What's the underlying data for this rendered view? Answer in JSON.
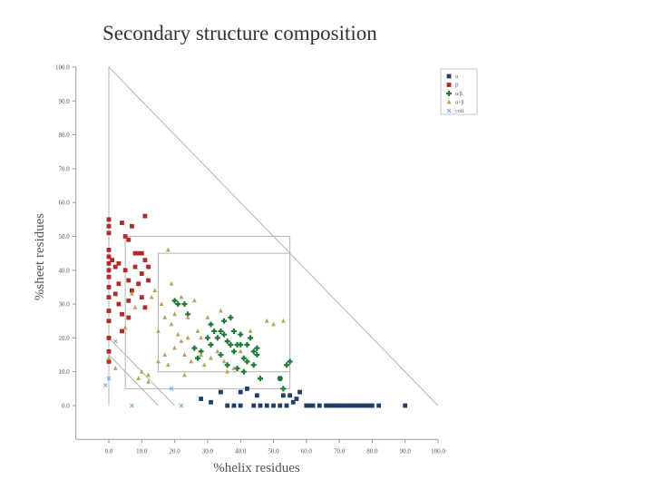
{
  "colors": {
    "alpha": "#1f3f6b",
    "beta": "#b22a2a",
    "a_b": "#1f7a3a",
    "a_plus_b": "#b8a45a",
    "coil": "#7fb0d8",
    "axis": "#9a9a9a",
    "guide": "#b4b4b4"
  },
  "chart_data": {
    "type": "scatter",
    "title": "Secondary structure composition",
    "xlabel": "%helix residues",
    "ylabel": "%sheet residues",
    "xlim": [
      -10,
      100
    ],
    "ylim": [
      -10,
      100
    ],
    "x_ticks": [
      "0.0",
      "10.0",
      "20.0",
      "30.0",
      "40.0",
      "50.0",
      "60.0",
      "70.0",
      "80.0",
      "90.0",
      "100.0"
    ],
    "y_ticks": [
      "0.0",
      "10.0",
      "20.0",
      "30.0",
      "40.0",
      "50.0",
      "60.0",
      "70.0",
      "80.0",
      "90.0",
      "100.0"
    ],
    "legend": {
      "position": "top-right",
      "entries": [
        "α",
        "β",
        "α/β",
        "α+β",
        "coil"
      ]
    },
    "guides": [
      {
        "name": "diagonal-boundary",
        "points": [
          [
            0,
            100
          ],
          [
            100,
            0
          ]
        ]
      },
      {
        "name": "boundary-line-a",
        "points": [
          [
            0,
            20
          ],
          [
            20,
            0
          ]
        ]
      },
      {
        "name": "boundary-line-b",
        "points": [
          [
            0,
            15
          ],
          [
            15,
            0
          ]
        ]
      },
      {
        "name": "region-box-outer",
        "points": [
          [
            5,
            50
          ],
          [
            55,
            50
          ],
          [
            55,
            5
          ],
          [
            5,
            5
          ]
        ]
      },
      {
        "name": "region-box-inner",
        "points": [
          [
            15,
            45
          ],
          [
            55,
            45
          ],
          [
            55,
            10
          ],
          [
            15,
            10
          ]
        ]
      }
    ],
    "series": [
      {
        "name": "α",
        "marker": "square",
        "points": [
          [
            28,
            2
          ],
          [
            31,
            1
          ],
          [
            34,
            4
          ],
          [
            36,
            0
          ],
          [
            38,
            0
          ],
          [
            40,
            0
          ],
          [
            40,
            4
          ],
          [
            42,
            5
          ],
          [
            44,
            0
          ],
          [
            45,
            3
          ],
          [
            48,
            0
          ],
          [
            52,
            0
          ],
          [
            52,
            8
          ],
          [
            53,
            3
          ],
          [
            54,
            0
          ],
          [
            55,
            3
          ],
          [
            57,
            2
          ],
          [
            58,
            4
          ],
          [
            60,
            0
          ],
          [
            61,
            0
          ],
          [
            62,
            0
          ],
          [
            64,
            0
          ],
          [
            66,
            0
          ],
          [
            67,
            0
          ],
          [
            68,
            0
          ],
          [
            69,
            0
          ],
          [
            70,
            0
          ],
          [
            71,
            0
          ],
          [
            72,
            0
          ],
          [
            73,
            0
          ],
          [
            74,
            0
          ],
          [
            75,
            0
          ],
          [
            76,
            0
          ],
          [
            77,
            0
          ],
          [
            78,
            0
          ],
          [
            79,
            0
          ],
          [
            80,
            0
          ],
          [
            82,
            0
          ],
          [
            90,
            0
          ],
          [
            56,
            1
          ],
          [
            50,
            0
          ],
          [
            46,
            0
          ]
        ]
      },
      {
        "name": "β",
        "marker": "square",
        "points": [
          [
            0,
            55
          ],
          [
            0,
            53
          ],
          [
            0,
            51
          ],
          [
            0,
            46
          ],
          [
            0,
            44
          ],
          [
            0,
            42
          ],
          [
            0,
            40
          ],
          [
            0,
            38
          ],
          [
            0,
            35
          ],
          [
            0,
            32
          ],
          [
            0,
            28
          ],
          [
            0,
            25
          ],
          [
            0,
            20
          ],
          [
            0,
            16
          ],
          [
            0,
            13
          ],
          [
            1,
            43
          ],
          [
            2,
            41
          ],
          [
            2,
            33
          ],
          [
            3,
            42
          ],
          [
            3,
            36
          ],
          [
            3,
            30
          ],
          [
            4,
            27
          ],
          [
            4,
            22
          ],
          [
            4,
            54
          ],
          [
            5,
            50
          ],
          [
            5,
            40
          ],
          [
            6,
            49
          ],
          [
            6,
            37
          ],
          [
            6,
            31
          ],
          [
            6,
            26
          ],
          [
            7,
            53
          ],
          [
            7,
            34
          ],
          [
            8,
            45
          ],
          [
            8,
            41
          ],
          [
            9,
            45
          ],
          [
            9,
            36
          ],
          [
            10,
            45
          ],
          [
            10,
            39
          ],
          [
            10,
            32
          ],
          [
            11,
            43
          ],
          [
            11,
            29
          ],
          [
            12,
            41
          ],
          [
            12,
            37
          ],
          [
            11,
            56
          ]
        ]
      },
      {
        "name": "α/β",
        "marker": "plus",
        "points": [
          [
            20,
            31
          ],
          [
            21,
            30
          ],
          [
            23,
            30
          ],
          [
            24,
            27
          ],
          [
            26,
            17
          ],
          [
            28,
            16
          ],
          [
            30,
            20
          ],
          [
            31,
            24
          ],
          [
            31,
            18
          ],
          [
            32,
            22
          ],
          [
            33,
            20
          ],
          [
            34,
            22
          ],
          [
            34,
            15
          ],
          [
            35,
            25
          ],
          [
            35,
            21
          ],
          [
            36,
            19
          ],
          [
            36,
            12
          ],
          [
            37,
            18
          ],
          [
            38,
            22
          ],
          [
            38,
            16
          ],
          [
            39,
            18
          ],
          [
            40,
            18
          ],
          [
            40,
            21
          ],
          [
            41,
            14
          ],
          [
            41,
            10
          ],
          [
            42,
            18
          ],
          [
            43,
            20
          ],
          [
            44,
            16
          ],
          [
            44,
            12
          ],
          [
            45,
            15
          ],
          [
            45,
            17
          ],
          [
            46,
            8
          ],
          [
            52,
            8
          ],
          [
            54,
            12
          ],
          [
            55,
            13
          ],
          [
            53,
            5
          ],
          [
            37,
            26
          ],
          [
            39,
            11
          ],
          [
            42,
            13
          ],
          [
            27,
            14
          ]
        ]
      },
      {
        "name": "α+β",
        "marker": "triangle",
        "points": [
          [
            0,
            14
          ],
          [
            2,
            11
          ],
          [
            5,
            23
          ],
          [
            7,
            33
          ],
          [
            8,
            29
          ],
          [
            9,
            8
          ],
          [
            10,
            10
          ],
          [
            12,
            7
          ],
          [
            13,
            32
          ],
          [
            14,
            34
          ],
          [
            15,
            22
          ],
          [
            15,
            13
          ],
          [
            16,
            30
          ],
          [
            17,
            26
          ],
          [
            17,
            15
          ],
          [
            18,
            46
          ],
          [
            18,
            12
          ],
          [
            19,
            36
          ],
          [
            19,
            24
          ],
          [
            20,
            27
          ],
          [
            20,
            17
          ],
          [
            21,
            21
          ],
          [
            22,
            19
          ],
          [
            22,
            32
          ],
          [
            23,
            15
          ],
          [
            23,
            9
          ],
          [
            24,
            26
          ],
          [
            24,
            20
          ],
          [
            25,
            13
          ],
          [
            26,
            31
          ],
          [
            27,
            22
          ],
          [
            28,
            20
          ],
          [
            28,
            15
          ],
          [
            29,
            12
          ],
          [
            30,
            26
          ],
          [
            31,
            14
          ],
          [
            33,
            16
          ],
          [
            34,
            28
          ],
          [
            35,
            13
          ],
          [
            36,
            10
          ],
          [
            38,
            11
          ],
          [
            40,
            16
          ],
          [
            43,
            22
          ],
          [
            48,
            25
          ],
          [
            50,
            24
          ],
          [
            53,
            25
          ],
          [
            12,
            9
          ]
        ]
      },
      {
        "name": "coil",
        "marker": "x",
        "points": [
          [
            0,
            8
          ],
          [
            7,
            0
          ],
          [
            19,
            5
          ],
          [
            22,
            0
          ],
          [
            2,
            19
          ],
          [
            -1,
            6
          ]
        ]
      }
    ]
  }
}
